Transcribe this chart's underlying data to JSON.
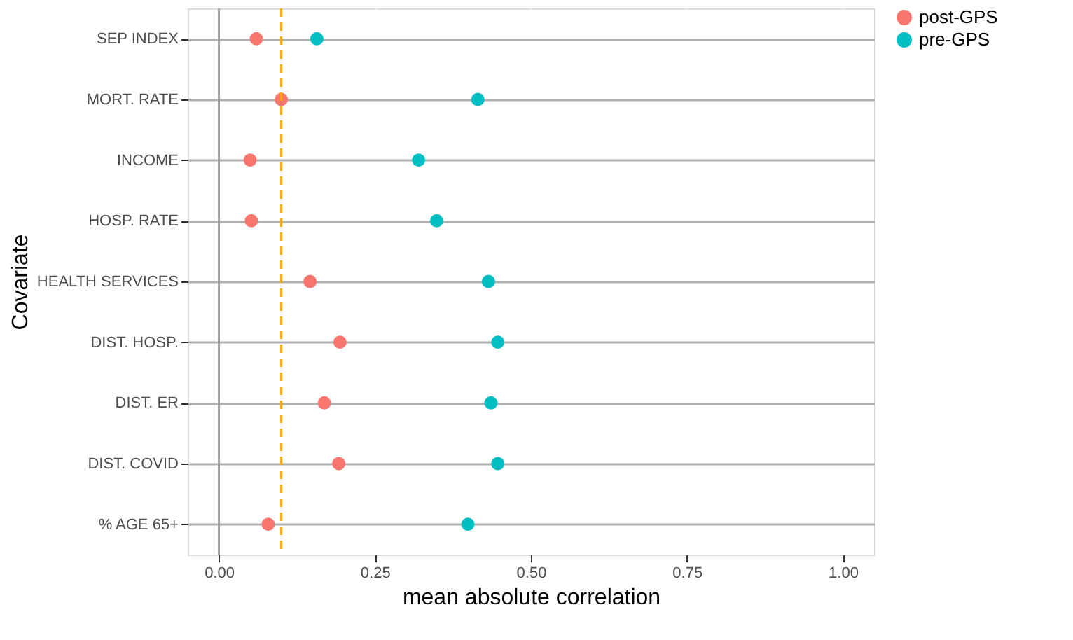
{
  "chart_data": {
    "type": "scatter",
    "xlabel": "mean absolute correlation",
    "ylabel": "Covariate",
    "categories": [
      "SEP INDEX",
      "MORT. RATE",
      "INCOME",
      "HOSP. RATE",
      "HEALTH SERVICES",
      "DIST. HOSP.",
      "DIST. ER",
      "DIST. COVID",
      "% AGE 65+"
    ],
    "orientation": "horizontal",
    "series": [
      {
        "name": "post-GPS",
        "color": "#f8766d",
        "values": [
          0.06,
          0.1,
          0.05,
          0.052,
          0.146,
          0.194,
          0.169,
          0.192,
          0.079
        ]
      },
      {
        "name": "pre-GPS",
        "color": "#00bfc4",
        "values": [
          0.157,
          0.415,
          0.32,
          0.349,
          0.432,
          0.447,
          0.436,
          0.447,
          0.399
        ]
      }
    ],
    "xlim": [
      -0.05,
      1.05
    ],
    "xticks": [
      {
        "value": 0,
        "label": "0.00"
      },
      {
        "value": 0.25,
        "label": "0.25"
      },
      {
        "value": 0.5,
        "label": "0.50"
      },
      {
        "value": 0.75,
        "label": "0.75"
      },
      {
        "value": 1,
        "label": "1.00"
      }
    ],
    "ref_lines": [
      {
        "axis": "x",
        "value": 0.1,
        "label": null,
        "color": "#ffa500",
        "line_style": "dashed"
      },
      {
        "axis": "x",
        "value": 0,
        "label": null,
        "color": "#a0a0a0",
        "line_style": "solid"
      }
    ],
    "grid": true,
    "legend": "right",
    "marker": "circle"
  }
}
